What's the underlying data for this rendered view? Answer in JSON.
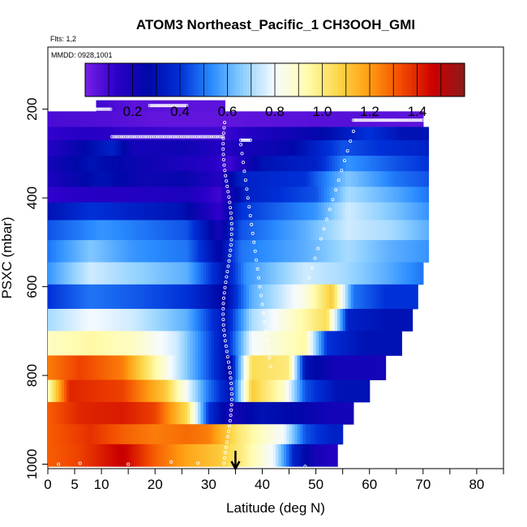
{
  "chart_data": {
    "type": "heatmap",
    "title": "ATOM3 Northeast_Pacific_1 CH3OOH_GMI",
    "annotations": [
      "Flts: 1,2",
      "MMDD: 0928,1001"
    ],
    "xlabel": "Latitude (deg N)",
    "ylabel": "PSXC (mbar)",
    "xlim": [
      0,
      85
    ],
    "ylim": [
      1010,
      60
    ],
    "x_ticks": [
      0,
      5,
      10,
      20,
      30,
      40,
      50,
      60,
      70,
      80
    ],
    "x_minor_ticks": [
      15,
      25,
      35,
      45,
      55,
      65,
      75,
      85
    ],
    "y_ticks": [
      200,
      400,
      600,
      800,
      1000
    ],
    "colorbar": {
      "ticks": [
        0.2,
        0.4,
        0.6,
        0.8,
        1.0,
        1.2,
        1.4
      ],
      "range": [
        0.0,
        1.6
      ],
      "colors": [
        "#7a1ee6",
        "#2a00c8",
        "#0008a8",
        "#0030d8",
        "#2a8cff",
        "#8ed0ff",
        "#f6fbff",
        "#fffcb0",
        "#fbd84a",
        "#ff9c10",
        "#f24a00",
        "#cc0000",
        "#8c1a1a"
      ]
    },
    "series_marker": {
      "latitude": 35,
      "label": "arrow"
    },
    "values": [
      {
        "pressure": [
          180,
          205
        ],
        "segments": [
          [
            9,
            0.1
          ],
          [
            12,
            0.08
          ],
          [
            16,
            0.05
          ],
          [
            20,
            0.06
          ],
          [
            25,
            0.05
          ],
          [
            33,
            0.05
          ]
        ]
      },
      {
        "pressure": [
          205,
          240
        ],
        "segments": [
          [
            0,
            0.08
          ],
          [
            10,
            0.07
          ],
          [
            20,
            0.04
          ],
          [
            30,
            0.04
          ],
          [
            40,
            0.05
          ],
          [
            55,
            0.06
          ],
          [
            70,
            0.05
          ]
        ]
      },
      {
        "pressure": [
          240,
          270
        ],
        "segments": [
          [
            0,
            0.12
          ],
          [
            8,
            0.15
          ],
          [
            14,
            0.12
          ],
          [
            25,
            0.1
          ],
          [
            33,
            0.1
          ],
          [
            37,
            0.15
          ],
          [
            50,
            0.25
          ],
          [
            60,
            0.4
          ],
          [
            66,
            0.3
          ],
          [
            71,
            0.3
          ]
        ]
      },
      {
        "pressure": [
          270,
          305
        ],
        "segments": [
          [
            0,
            0.15
          ],
          [
            12,
            0.35
          ],
          [
            16,
            0.2
          ],
          [
            25,
            0.22
          ],
          [
            33,
            0.15
          ],
          [
            37,
            0.2
          ],
          [
            45,
            0.25
          ],
          [
            55,
            0.45
          ],
          [
            62,
            0.4
          ],
          [
            71,
            0.35
          ]
        ]
      },
      {
        "pressure": [
          305,
          340
        ],
        "segments": [
          [
            0,
            0.2
          ],
          [
            8,
            0.3
          ],
          [
            14,
            0.25
          ],
          [
            22,
            0.2
          ],
          [
            30,
            0.15
          ],
          [
            34,
            0.1
          ],
          [
            40,
            0.3
          ],
          [
            50,
            0.35
          ],
          [
            56,
            0.55
          ],
          [
            65,
            0.45
          ],
          [
            71,
            0.4
          ]
        ]
      },
      {
        "pressure": [
          340,
          375
        ],
        "segments": [
          [
            0,
            0.18
          ],
          [
            10,
            0.3
          ],
          [
            18,
            0.22
          ],
          [
            25,
            0.25
          ],
          [
            32,
            0.15
          ],
          [
            36,
            0.35
          ],
          [
            48,
            0.4
          ],
          [
            56,
            0.65
          ],
          [
            65,
            0.5
          ],
          [
            71,
            0.45
          ]
        ]
      },
      {
        "pressure": [
          375,
          410
        ],
        "segments": [
          [
            0,
            0.12
          ],
          [
            8,
            0.15
          ],
          [
            16,
            0.15
          ],
          [
            26,
            0.18
          ],
          [
            32,
            0.1
          ],
          [
            37,
            0.35
          ],
          [
            50,
            0.45
          ],
          [
            56,
            0.7
          ],
          [
            64,
            0.6
          ],
          [
            71,
            0.5
          ]
        ]
      },
      {
        "pressure": [
          410,
          450
        ],
        "segments": [
          [
            0,
            0.3
          ],
          [
            8,
            0.4
          ],
          [
            16,
            0.35
          ],
          [
            25,
            0.3
          ],
          [
            32,
            0.12
          ],
          [
            36,
            0.4
          ],
          [
            50,
            0.55
          ],
          [
            56,
            0.75
          ],
          [
            64,
            0.65
          ],
          [
            71,
            0.55
          ]
        ]
      },
      {
        "pressure": [
          450,
          495
        ],
        "segments": [
          [
            0,
            0.45
          ],
          [
            10,
            0.55
          ],
          [
            18,
            0.5
          ],
          [
            26,
            0.45
          ],
          [
            32,
            0.2
          ],
          [
            36,
            0.45
          ],
          [
            48,
            0.6
          ],
          [
            56,
            0.75
          ],
          [
            64,
            0.7
          ],
          [
            71,
            0.6
          ]
        ]
      },
      {
        "pressure": [
          495,
          545
        ],
        "segments": [
          [
            0,
            0.5
          ],
          [
            8,
            0.65
          ],
          [
            16,
            0.55
          ],
          [
            26,
            0.5
          ],
          [
            32,
            0.25
          ],
          [
            36,
            0.5
          ],
          [
            48,
            0.6
          ],
          [
            56,
            0.7
          ],
          [
            64,
            0.6
          ],
          [
            71,
            0.55
          ]
        ]
      },
      {
        "pressure": [
          545,
          595
        ],
        "segments": [
          [
            0,
            0.55
          ],
          [
            8,
            0.75
          ],
          [
            16,
            0.68
          ],
          [
            26,
            0.6
          ],
          [
            33,
            0.3
          ],
          [
            37,
            0.55
          ],
          [
            48,
            0.75
          ],
          [
            55,
            0.7
          ],
          [
            63,
            0.6
          ],
          [
            70,
            0.5
          ]
        ]
      },
      {
        "pressure": [
          595,
          650
        ],
        "segments": [
          [
            0,
            0.4
          ],
          [
            8,
            0.5
          ],
          [
            18,
            0.45
          ],
          [
            26,
            0.4
          ],
          [
            33,
            0.25
          ],
          [
            38,
            0.6
          ],
          [
            48,
            0.85
          ],
          [
            53,
            1.1
          ],
          [
            57,
            0.5
          ],
          [
            63,
            0.4
          ]
        ]
      },
      {
        "pressure": [
          650,
          700
        ],
        "segments": [
          [
            0,
            0.7
          ],
          [
            8,
            0.8
          ],
          [
            16,
            0.75
          ],
          [
            26,
            0.6
          ],
          [
            33,
            0.3
          ],
          [
            38,
            0.7
          ],
          [
            48,
            0.95
          ],
          [
            52,
            1.05
          ],
          [
            56,
            0.35
          ],
          [
            63,
            0.3
          ]
        ]
      },
      {
        "pressure": [
          700,
          755
        ],
        "segments": [
          [
            0,
            0.9
          ],
          [
            8,
            0.95
          ],
          [
            16,
            0.9
          ],
          [
            24,
            0.75
          ],
          [
            33,
            0.3
          ],
          [
            38,
            0.8
          ],
          [
            48,
            0.95
          ],
          [
            52,
            0.4
          ],
          [
            59,
            0.3
          ]
        ]
      },
      {
        "pressure": [
          755,
          810
        ],
        "segments": [
          [
            0,
            1.25
          ],
          [
            6,
            1.35
          ],
          [
            14,
            1.25
          ],
          [
            20,
            0.95
          ],
          [
            30,
            0.45
          ],
          [
            34,
            0.25
          ],
          [
            38,
            1.05
          ],
          [
            45,
            1.0
          ],
          [
            48,
            0.3
          ],
          [
            54,
            0.2
          ]
        ]
      },
      {
        "pressure": [
          810,
          860
        ],
        "segments": [
          [
            0,
            0.9
          ],
          [
            4,
            1.4
          ],
          [
            14,
            1.35
          ],
          [
            22,
            1.1
          ],
          [
            30,
            0.5
          ],
          [
            34,
            0.3
          ],
          [
            38,
            1.1
          ],
          [
            44,
            0.9
          ],
          [
            48,
            0.45
          ],
          [
            54,
            0.3
          ]
        ]
      },
      {
        "pressure": [
          860,
          910
        ],
        "segments": [
          [
            0,
            1.3
          ],
          [
            6,
            1.4
          ],
          [
            14,
            1.42
          ],
          [
            20,
            1.35
          ],
          [
            26,
            1.05
          ],
          [
            30,
            0.4
          ],
          [
            34,
            0.2
          ],
          [
            40,
            0.3
          ],
          [
            48,
            0.25
          ],
          [
            53,
            0.2
          ]
        ]
      },
      {
        "pressure": [
          910,
          955
        ],
        "segments": [
          [
            0,
            1.3
          ],
          [
            8,
            1.38
          ],
          [
            14,
            1.3
          ],
          [
            20,
            1.25
          ],
          [
            26,
            1.28
          ],
          [
            30,
            1.25
          ],
          [
            36,
            1.0
          ],
          [
            44,
            0.8
          ],
          [
            48,
            0.45
          ],
          [
            53,
            0.35
          ]
        ]
      },
      {
        "pressure": [
          955,
          1005
        ],
        "segments": [
          [
            0,
            1.3
          ],
          [
            6,
            1.35
          ],
          [
            14,
            1.48
          ],
          [
            20,
            1.3
          ],
          [
            26,
            1.18
          ],
          [
            32,
            1.1
          ],
          [
            36,
            1.0
          ],
          [
            42,
            0.8
          ],
          [
            46,
            0.35
          ],
          [
            50,
            0.2
          ],
          [
            54,
            0.15
          ]
        ]
      }
    ],
    "row_ends": {
      "180": 33,
      "205": 70,
      "240": 71,
      "270": 71,
      "305": 71,
      "340": 71,
      "375": 71,
      "410": 71,
      "450": 71,
      "495": 71,
      "545": 70,
      "595": 69,
      "650": 68,
      "700": 66,
      "755": 63,
      "810": 60,
      "860": 57,
      "910": 55,
      "955": 54
    }
  }
}
